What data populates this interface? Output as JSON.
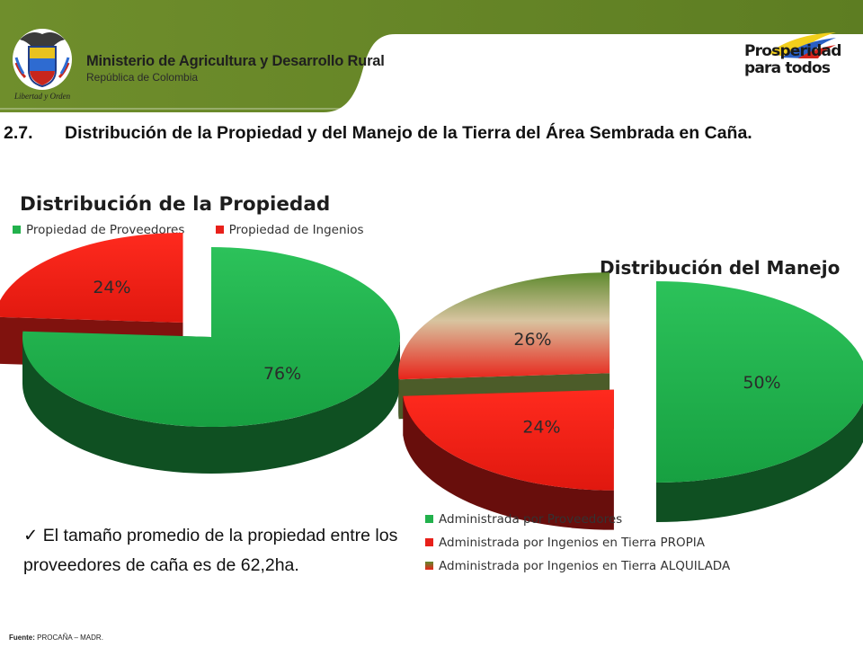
{
  "header": {
    "ministry_title": "Ministerio de Agricultura y Desarrollo Rural",
    "ministry_subtitle": "República de Colombia",
    "motto": "Libertad y Orden",
    "logo_right_line1": "Prosperidad",
    "logo_right_line2": "para todos",
    "band_color": "#6b8a2a"
  },
  "section": {
    "number": "2.7.",
    "title": "Distribución de la Propiedad y del Manejo de la Tierra del Área Sembrada en Caña."
  },
  "chart_data": [
    {
      "type": "pie",
      "title": "Distribución de la Propiedad",
      "categories": [
        "Propiedad de Proveedores",
        "Propiedad de Ingenios"
      ],
      "values": [
        76,
        24
      ],
      "labels": [
        "76%",
        "24%"
      ],
      "colors": [
        "#22b14c",
        "#e8201a"
      ],
      "legend_placement": "top"
    },
    {
      "type": "pie",
      "title": "Distribución del Manejo",
      "categories": [
        "Administrada por Proveedores",
        "Administrada por Ingenios en Tierra PROPIA",
        "Administrada por Ingenios en Tierra ALQUILADA"
      ],
      "values": [
        50,
        24,
        26
      ],
      "labels": [
        "50%",
        "24%",
        "26%"
      ],
      "colors": [
        "#22b14c",
        "#e8201a",
        "#8aa84a"
      ],
      "legend_placement": "bottom"
    }
  ],
  "note": {
    "check": "✓",
    "text": "El tamaño promedio de la propiedad entre los proveedores de caña es de 62,2ha."
  },
  "footer": {
    "label": "Fuente:",
    "source": "PROCAÑA – MADR."
  }
}
